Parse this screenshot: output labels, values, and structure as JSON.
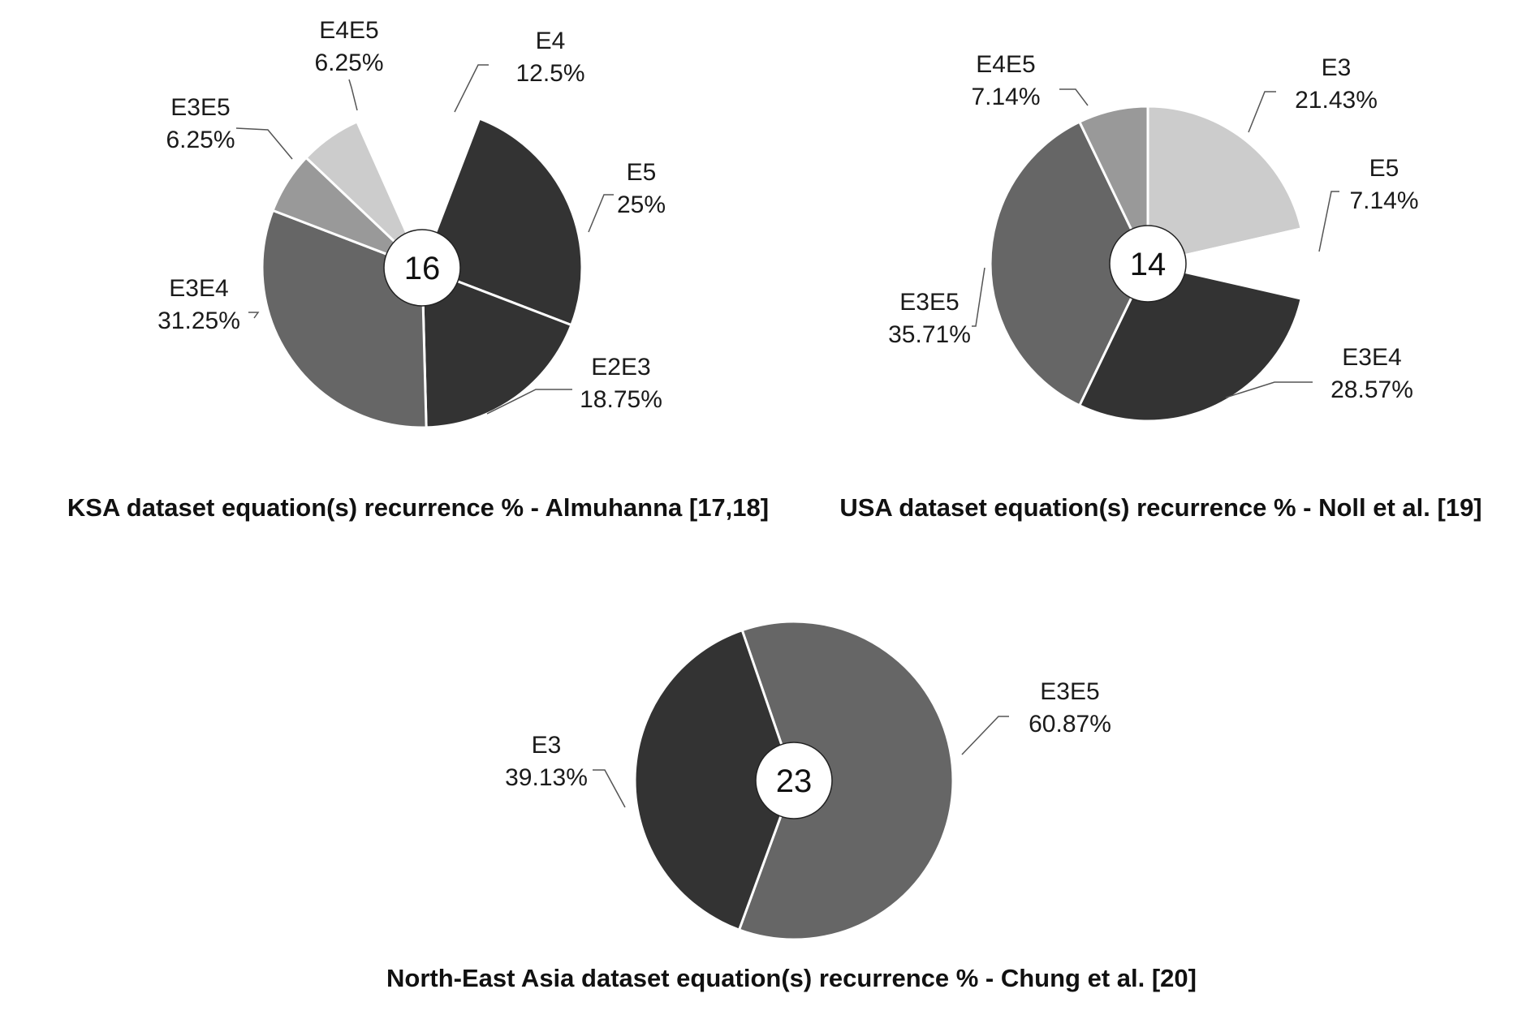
{
  "chart_data": [
    {
      "type": "pie",
      "title": "KSA dataset equation(s) recurrence % - Almuhanna [17,18]",
      "center_value": "16",
      "slices": [
        {
          "label": "E4",
          "value_text": "12.5%",
          "value": 12.5,
          "color": "#ffffff"
        },
        {
          "label": "E5",
          "value_text": "25%",
          "value": 25,
          "color": "#333333"
        },
        {
          "label": "E2E3",
          "value_text": "18.75%",
          "value": 18.75,
          "color": "#333333"
        },
        {
          "label": "E3E4",
          "value_text": "31.25%",
          "value": 31.25,
          "color": "#666666"
        },
        {
          "label": "E3E5",
          "value_text": "6.25%",
          "value": 6.25,
          "color": "#999999"
        },
        {
          "label": "E4E5",
          "value_text": "6.25%",
          "value": 6.25,
          "color": "#cccccc"
        }
      ]
    },
    {
      "type": "pie",
      "title": "USA dataset equation(s) recurrence % - Noll et al. [19]",
      "center_value": "14",
      "slices": [
        {
          "label": "E3",
          "value_text": "21.43%",
          "value": 21.43,
          "color": "#cccccc"
        },
        {
          "label": "E5",
          "value_text": "7.14%",
          "value": 7.14,
          "color": "#ffffff"
        },
        {
          "label": "E3E4",
          "value_text": "28.57%",
          "value": 28.57,
          "color": "#333333"
        },
        {
          "label": "E3E5",
          "value_text": "35.71%",
          "value": 35.71,
          "color": "#666666"
        },
        {
          "label": "E4E5",
          "value_text": "7.14%",
          "value": 7.14,
          "color": "#999999"
        }
      ]
    },
    {
      "type": "pie",
      "title": "North-East Asia dataset equation(s) recurrence % - Chung et al. [20]",
      "center_value": "23",
      "slices": [
        {
          "label": "E3E5",
          "value_text": "60.87%",
          "value": 60.87,
          "color": "#666666"
        },
        {
          "label": "E3",
          "value_text": "39.13%",
          "value": 39.13,
          "color": "#333333"
        }
      ]
    }
  ]
}
